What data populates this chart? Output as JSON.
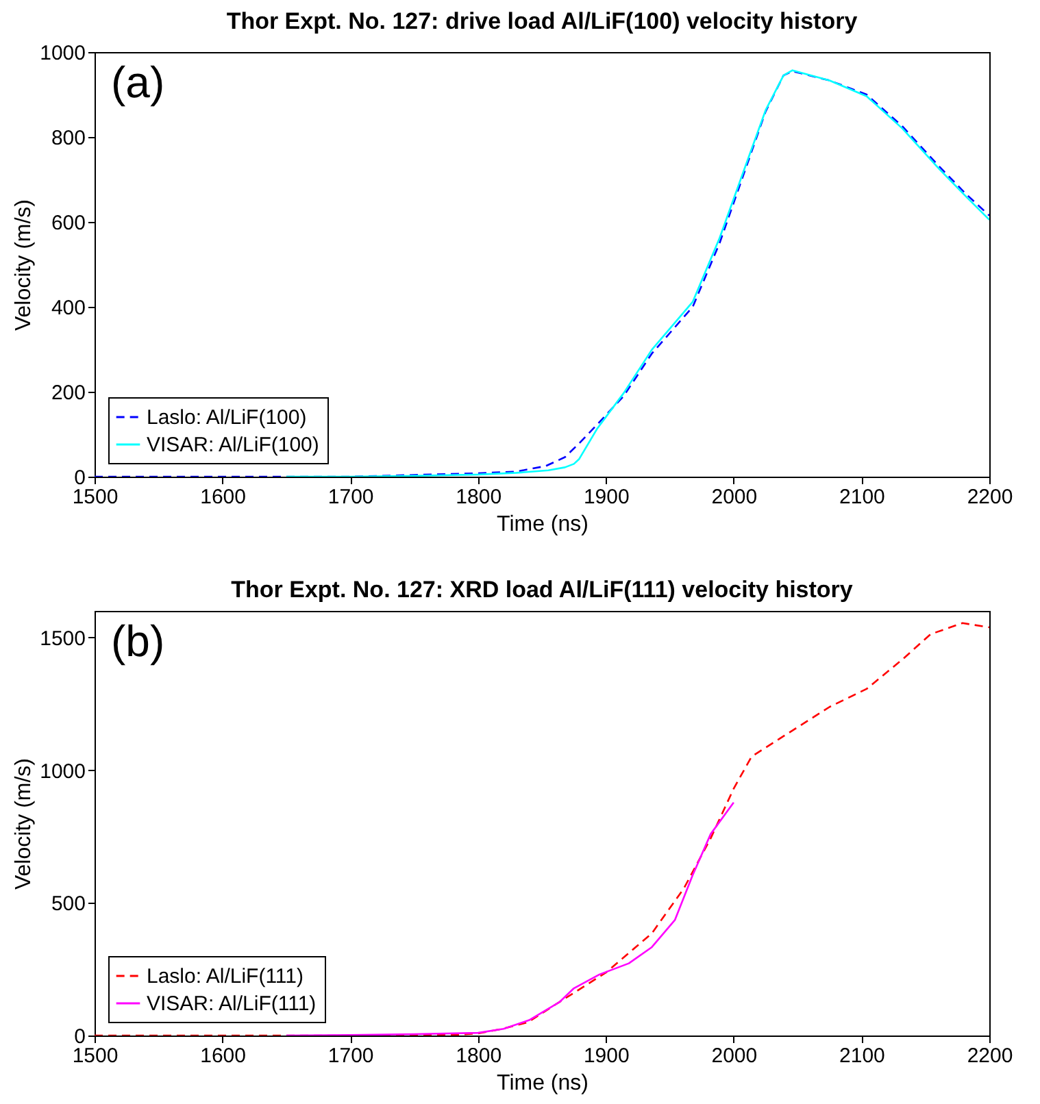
{
  "chart_data": [
    {
      "type": "line",
      "title": "Thor Expt. No. 127: drive load Al/LiF(100) velocity history",
      "xlabel": "Time (ns)",
      "ylabel": "Velocity (m/s)",
      "annotations": [
        "(a)"
      ],
      "xlim": [
        1500,
        2200
      ],
      "xticks": [
        1500,
        1600,
        1700,
        1800,
        1900,
        2000,
        2100,
        2200
      ],
      "ylim": [
        0,
        1000
      ],
      "yticks": [
        0,
        200,
        400,
        600,
        800,
        1000
      ],
      "grid": false,
      "legend": "bottom left",
      "marker": "none",
      "series": [
        {
          "name": "Laslo: Al/LiF(100)",
          "color": "#0000ff",
          "line_style": "dashed",
          "x": [
            1500,
            1600,
            1700,
            1800,
            1830,
            1853,
            1868,
            1879,
            1893,
            1914,
            1936,
            1968,
            1989,
            2007,
            2025,
            2039,
            2046,
            2075,
            2104,
            2132,
            2161,
            2182,
            2200
          ],
          "values": [
            0,
            0,
            0,
            8,
            12,
            25,
            46,
            78,
            122,
            190,
            290,
            400,
            550,
            705,
            860,
            945,
            955,
            933,
            900,
            825,
            730,
            665,
            615
          ]
        },
        {
          "name": "VISAR: Al/LiF(100)",
          "color": "#00ffff",
          "line_style": "solid",
          "x": [
            1650,
            1700,
            1750,
            1800,
            1830,
            1855,
            1868,
            1875,
            1879,
            1893,
            1914,
            1936,
            1968,
            1989,
            2007,
            2025,
            2039,
            2046,
            2075,
            2104,
            2132,
            2161,
            2182,
            2200
          ],
          "values": [
            0,
            0,
            2,
            5,
            9,
            15,
            22,
            30,
            41,
            112,
            197,
            299,
            412,
            562,
            713,
            863,
            945,
            957,
            933,
            896,
            820,
            724,
            659,
            605
          ]
        }
      ]
    },
    {
      "type": "line",
      "title": "Thor Expt. No. 127: XRD load Al/LiF(111) velocity history",
      "xlabel": "Time (ns)",
      "ylabel": "Velocity (m/s)",
      "annotations": [
        "(b)"
      ],
      "xlim": [
        1500,
        2200
      ],
      "xticks": [
        1500,
        1600,
        1700,
        1800,
        1900,
        2000,
        2100,
        2200
      ],
      "ylim": [
        0,
        1600
      ],
      "yticks": [
        0,
        500,
        1000,
        1500
      ],
      "grid": false,
      "legend": "bottom left",
      "marker": "none",
      "series": [
        {
          "name": "Laslo: Al/LiF(111)",
          "color": "#ff0000",
          "line_style": "dashed",
          "x": [
            1500,
            1600,
            1700,
            1780,
            1800,
            1818,
            1839,
            1861,
            1900,
            1936,
            1961,
            1982,
            2000,
            2014,
            2039,
            2075,
            2104,
            2132,
            2154,
            2179,
            2200
          ],
          "values": [
            0,
            0,
            0,
            2,
            8,
            24,
            50,
            118,
            237,
            385,
            554,
            743,
            930,
            1051,
            1128,
            1238,
            1306,
            1417,
            1512,
            1554,
            1538
          ]
        },
        {
          "name": "VISAR: Al/LiF(111)",
          "color": "#ff00ff",
          "line_style": "solid",
          "x": [
            1650,
            1700,
            1750,
            1800,
            1820,
            1840,
            1864,
            1875,
            1895,
            1918,
            1936,
            1954,
            1968,
            1982,
            2000
          ],
          "values": [
            0,
            2,
            5,
            10,
            25,
            58,
            127,
            178,
            230,
            272,
            333,
            435,
            605,
            759,
            878
          ]
        }
      ]
    }
  ]
}
